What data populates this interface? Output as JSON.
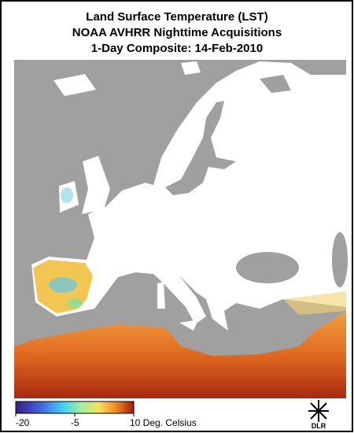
{
  "title": [
    "Land Surface Temperature (LST)",
    "NOAA AVHRR Nighttime Acquisitions",
    "1-Day Composite: 14-Feb-2010"
  ],
  "colorbar": {
    "range": [
      -20,
      10
    ],
    "ticks": [
      -20,
      -5,
      {
        "value": 10,
        "label": "10 Deg. Celsius"
      }
    ]
  },
  "logo": "DLR"
}
